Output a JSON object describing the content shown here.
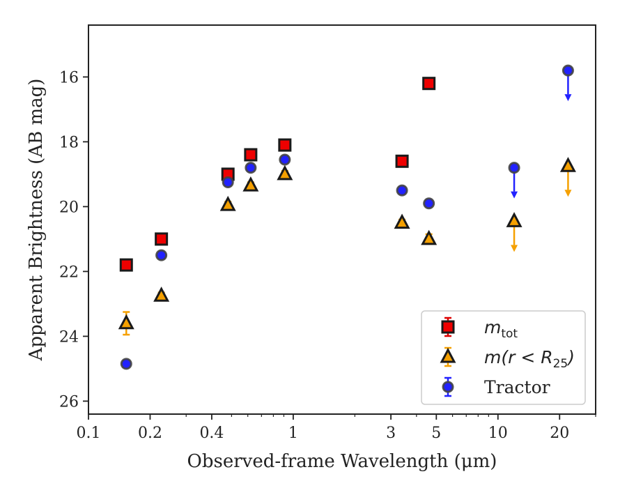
{
  "chart_data": {
    "type": "scatter",
    "xlabel": "Observed-frame Wavelength (μm)",
    "ylabel": "Apparent Brightness (AB mag)",
    "xscale": "log",
    "xlim": [
      0.1,
      30
    ],
    "ylim": [
      26.4,
      14.4
    ],
    "y_inverted": true,
    "grid": false,
    "legend_position": "lower-right",
    "x_ticks": [
      0.1,
      0.2,
      0.4,
      1,
      3,
      5,
      10,
      20
    ],
    "x_tick_labels": [
      "0.1",
      "0.2",
      "0.4",
      "1",
      "3",
      "5",
      "10",
      "20"
    ],
    "y_ticks": [
      16,
      18,
      20,
      22,
      24,
      26
    ],
    "y_tick_labels": [
      "16",
      "18",
      "20",
      "22",
      "24",
      "26"
    ],
    "series": [
      {
        "legend_main": "m",
        "legend_sub": "tot",
        "marker": "square",
        "fill": "#ee0000",
        "edge": "#1a1a1a",
        "errcolor": "#dd0000",
        "points": [
          {
            "x": 0.153,
            "y": 21.8,
            "err": 0.1
          },
          {
            "x": 0.227,
            "y": 21.0,
            "err": 0.1
          },
          {
            "x": 0.48,
            "y": 19.0,
            "err": 0.1
          },
          {
            "x": 0.62,
            "y": 18.4,
            "err": 0.1
          },
          {
            "x": 0.91,
            "y": 18.1,
            "err": 0.1
          },
          {
            "x": 3.4,
            "y": 18.6,
            "err": 0.1
          },
          {
            "x": 4.6,
            "y": 16.2,
            "err": 0.1
          }
        ]
      },
      {
        "legend_main": "m(r < R",
        "legend_sub": "25",
        "legend_end": ")",
        "marker": "triangle",
        "fill": "#f5a000",
        "edge": "#1a1a1a",
        "errcolor": "#f5a000",
        "points": [
          {
            "x": 0.153,
            "y": 23.6,
            "err": 0.35
          },
          {
            "x": 0.227,
            "y": 22.75,
            "err": 0.1
          },
          {
            "x": 0.48,
            "y": 19.95,
            "err": 0.1
          },
          {
            "x": 0.62,
            "y": 19.35,
            "err": 0.1
          },
          {
            "x": 0.91,
            "y": 19.0,
            "err": 0.1
          },
          {
            "x": 3.4,
            "y": 20.5,
            "err": 0.1
          },
          {
            "x": 4.6,
            "y": 21.0,
            "err": 0.15
          },
          {
            "x": 12,
            "y": 20.45,
            "upper_limit": true
          },
          {
            "x": 22,
            "y": 18.75,
            "upper_limit": true
          }
        ]
      },
      {
        "legend_main": "Tractor",
        "marker": "circle",
        "fill": "#2222ff",
        "edge": "#444444",
        "errcolor": "#2222ff",
        "points": [
          {
            "x": 0.153,
            "y": 24.85,
            "err": 0.1
          },
          {
            "x": 0.227,
            "y": 21.5,
            "err": 0.1
          },
          {
            "x": 0.48,
            "y": 19.25,
            "err": 0.1
          },
          {
            "x": 0.62,
            "y": 18.8,
            "err": 0.1
          },
          {
            "x": 0.91,
            "y": 18.55,
            "err": 0.1
          },
          {
            "x": 3.4,
            "y": 19.5,
            "err": 0.1
          },
          {
            "x": 4.6,
            "y": 19.9,
            "err": 0.1
          },
          {
            "x": 12,
            "y": 18.8,
            "upper_limit": true
          },
          {
            "x": 22,
            "y": 15.8,
            "upper_limit": true
          }
        ]
      }
    ]
  }
}
